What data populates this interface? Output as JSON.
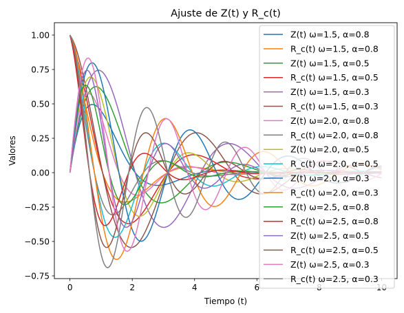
{
  "chart_data": {
    "type": "line",
    "title": "Ajuste de Z(t) y R_c(t)",
    "xlabel": "Tiempo (t)",
    "ylabel": "Valores",
    "xlim": [
      -0.5,
      10.5
    ],
    "ylim": [
      -0.77,
      1.09
    ],
    "xticks": [
      0,
      2,
      4,
      6,
      8,
      10
    ],
    "xtick_labels": [
      "0",
      "2",
      "4",
      "6",
      "8",
      "10"
    ],
    "yticks": [
      -0.75,
      -0.5,
      -0.25,
      0.0,
      0.25,
      0.5,
      0.75,
      1.0
    ],
    "ytick_labels": [
      "−0.75",
      "−0.50",
      "−0.25",
      "0.00",
      "0.25",
      "0.50",
      "0.75",
      "1.00"
    ],
    "grid": false,
    "legend_position": "upper-right",
    "x_sampling": {
      "start": 0,
      "stop": 10,
      "points": 201
    },
    "series": [
      {
        "name": "Z(t) ω=1.5, α=0.8",
        "func": "Z",
        "omega": 1.5,
        "alpha": 0.8,
        "color": "#1f77b4"
      },
      {
        "name": "R_c(t) ω=1.5, α=0.8",
        "func": "R",
        "omega": 1.5,
        "alpha": 0.8,
        "color": "#ff7f0e"
      },
      {
        "name": "Z(t) ω=1.5, α=0.5",
        "func": "Z",
        "omega": 1.5,
        "alpha": 0.5,
        "color": "#2ca02c"
      },
      {
        "name": "R_c(t) ω=1.5, α=0.5",
        "func": "R",
        "omega": 1.5,
        "alpha": 0.5,
        "color": "#d62728"
      },
      {
        "name": "Z(t) ω=1.5, α=0.3",
        "func": "Z",
        "omega": 1.5,
        "alpha": 0.3,
        "color": "#9467bd"
      },
      {
        "name": "R_c(t) ω=1.5, α=0.3",
        "func": "R",
        "omega": 1.5,
        "alpha": 0.3,
        "color": "#8c564b"
      },
      {
        "name": "Z(t) ω=2.0, α=0.8",
        "func": "Z",
        "omega": 2.0,
        "alpha": 0.8,
        "color": "#e377c2"
      },
      {
        "name": "R_c(t) ω=2.0, α=0.8",
        "func": "R",
        "omega": 2.0,
        "alpha": 0.8,
        "color": "#7f7f7f"
      },
      {
        "name": "Z(t) ω=2.0, α=0.5",
        "func": "Z",
        "omega": 2.0,
        "alpha": 0.5,
        "color": "#bcbd22"
      },
      {
        "name": "R_c(t) ω=2.0, α=0.5",
        "func": "R",
        "omega": 2.0,
        "alpha": 0.5,
        "color": "#17becf"
      },
      {
        "name": "Z(t) ω=2.0, α=0.3",
        "func": "Z",
        "omega": 2.0,
        "alpha": 0.3,
        "color": "#1f77b4"
      },
      {
        "name": "R_c(t) ω=2.0, α=0.3",
        "func": "R",
        "omega": 2.0,
        "alpha": 0.3,
        "color": "#ff7f0e"
      },
      {
        "name": "Z(t) ω=2.5, α=0.8",
        "func": "Z",
        "omega": 2.5,
        "alpha": 0.8,
        "color": "#2ca02c"
      },
      {
        "name": "R_c(t) ω=2.5, α=0.8",
        "func": "R",
        "omega": 2.5,
        "alpha": 0.8,
        "color": "#d62728"
      },
      {
        "name": "Z(t) ω=2.5, α=0.5",
        "func": "Z",
        "omega": 2.5,
        "alpha": 0.5,
        "color": "#9467bd"
      },
      {
        "name": "R_c(t) ω=2.5, α=0.5",
        "func": "R",
        "omega": 2.5,
        "alpha": 0.5,
        "color": "#8c564b"
      },
      {
        "name": "Z(t) ω=2.5, α=0.3",
        "func": "Z",
        "omega": 2.5,
        "alpha": 0.3,
        "color": "#e377c2"
      },
      {
        "name": "R_c(t) ω=2.5, α=0.3",
        "func": "R",
        "omega": 2.5,
        "alpha": 0.3,
        "color": "#7f7f7f"
      }
    ]
  }
}
